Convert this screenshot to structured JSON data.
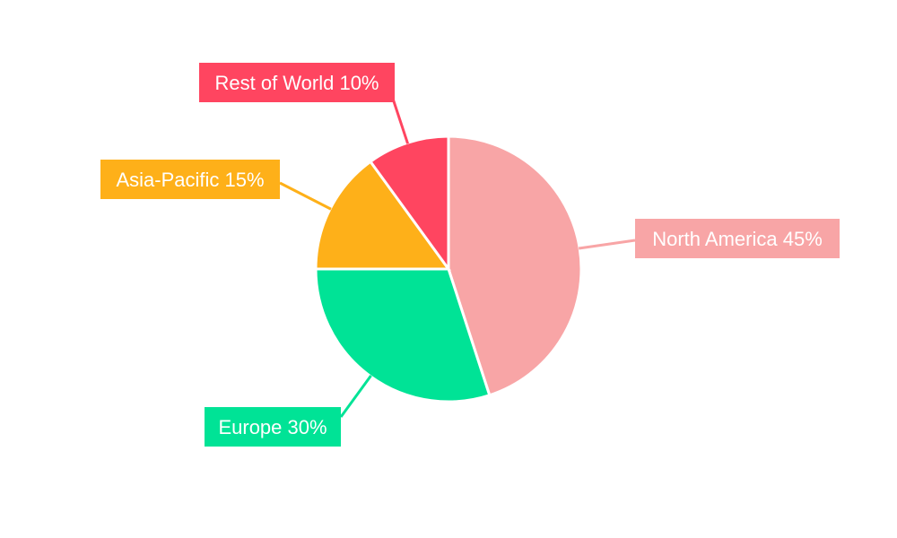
{
  "chart_data": {
    "type": "pie",
    "title": "",
    "start_angle_deg": 0,
    "direction": "clockwise",
    "slices": [
      {
        "label": "North America",
        "value": 45,
        "text": "North America 45%",
        "color": "#F8A5A6"
      },
      {
        "label": "Europe",
        "value": 30,
        "text": "Europe 30%",
        "color": "#00E396"
      },
      {
        "label": "Asia-Pacific",
        "value": 15,
        "text": "Asia-Pacific 15%",
        "color": "#FEB019"
      },
      {
        "label": "Rest of World",
        "value": 10,
        "text": "Rest of World 10%",
        "color": "#FF4560"
      }
    ]
  }
}
